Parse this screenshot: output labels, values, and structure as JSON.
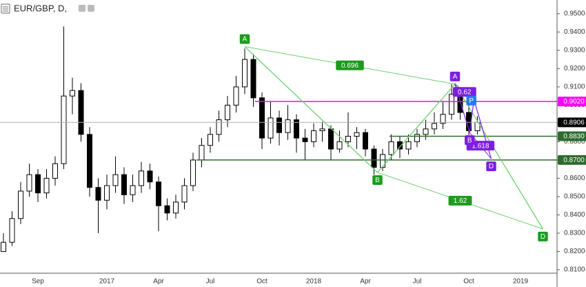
{
  "chart_data": {
    "type": "candlestick",
    "title": "EUR/GBP, D,",
    "categories": [
      null,
      null,
      null,
      null,
      "Sep",
      null,
      null,
      null,
      null,
      null,
      null,
      null,
      "2017",
      null,
      null,
      null,
      null,
      null,
      "Apr",
      null,
      null,
      null,
      null,
      null,
      "Jul",
      null,
      null,
      null,
      null,
      null,
      "Oct",
      null,
      null,
      null,
      null,
      null,
      "2018",
      null,
      null,
      null,
      null,
      null,
      "Apr",
      null,
      null,
      null,
      null,
      null,
      "Jul",
      null,
      null,
      null,
      null,
      null,
      "Oct",
      null,
      null,
      null,
      null,
      null,
      "2019",
      null,
      null,
      null
    ],
    "open": [
      0.82,
      0.825,
      0.838,
      0.853,
      0.862,
      0.852,
      0.86,
      0.868,
      0.905,
      0.908,
      0.884,
      0.855,
      0.848,
      0.856,
      0.862,
      0.851,
      0.856,
      0.864,
      0.858,
      0.845,
      0.841,
      0.847,
      0.856,
      0.87,
      0.878,
      0.884,
      0.892,
      0.9,
      0.91,
      0.925,
      0.904,
      0.882,
      0.893,
      0.885,
      0.892,
      0.882,
      0.88,
      0.886,
      0.887,
      0.876,
      0.88,
      0.883,
      0.885,
      0.876,
      0.866,
      0.873,
      0.88,
      0.876,
      0.88,
      0.884,
      0.887,
      0.89,
      0.895,
      0.906,
      0.896,
      0.886,
      null,
      null,
      null,
      null,
      null,
      null,
      null,
      null
    ],
    "high": [
      0.83,
      0.842,
      0.858,
      0.868,
      0.865,
      0.865,
      0.872,
      0.943,
      0.915,
      0.912,
      0.888,
      0.86,
      0.862,
      0.872,
      0.866,
      0.862,
      0.869,
      0.868,
      0.861,
      0.849,
      0.851,
      0.86,
      0.874,
      0.882,
      0.888,
      0.897,
      0.905,
      0.916,
      0.931,
      0.928,
      0.907,
      0.902,
      0.897,
      0.9,
      0.895,
      0.887,
      0.89,
      0.891,
      0.889,
      0.886,
      0.896,
      0.888,
      0.887,
      0.878,
      0.876,
      0.884,
      0.883,
      0.884,
      0.887,
      0.892,
      0.896,
      0.902,
      0.9115,
      0.909,
      0.902,
      0.894,
      null,
      null,
      null,
      null,
      null,
      null,
      null,
      null
    ],
    "low": [
      0.821,
      0.823,
      0.835,
      0.85,
      0.847,
      0.849,
      0.856,
      0.865,
      0.895,
      0.88,
      0.85,
      0.83,
      0.843,
      0.852,
      0.846,
      0.847,
      0.852,
      0.854,
      0.831,
      0.837,
      0.838,
      0.843,
      0.853,
      0.866,
      0.874,
      0.88,
      0.888,
      0.896,
      0.906,
      0.899,
      0.876,
      0.879,
      0.878,
      0.881,
      0.874,
      0.87,
      0.877,
      0.88,
      0.87,
      0.874,
      0.877,
      0.876,
      0.872,
      0.862,
      0.864,
      0.87,
      0.871,
      0.873,
      0.877,
      0.881,
      0.884,
      0.887,
      0.892,
      0.892,
      0.882,
      0.884,
      null,
      null,
      null,
      null,
      null,
      null,
      null,
      null
    ],
    "close": [
      0.825,
      0.838,
      0.853,
      0.862,
      0.852,
      0.86,
      0.868,
      0.905,
      0.908,
      0.884,
      0.855,
      0.848,
      0.856,
      0.862,
      0.851,
      0.856,
      0.864,
      0.858,
      0.845,
      0.841,
      0.847,
      0.856,
      0.87,
      0.878,
      0.884,
      0.892,
      0.9,
      0.91,
      0.925,
      0.904,
      0.882,
      0.893,
      0.885,
      0.892,
      0.882,
      0.88,
      0.886,
      0.887,
      0.876,
      0.88,
      0.883,
      0.885,
      0.876,
      0.866,
      0.873,
      0.88,
      0.876,
      0.88,
      0.884,
      0.887,
      0.89,
      0.895,
      0.906,
      0.896,
      0.886,
      0.8906,
      null,
      null,
      null,
      null,
      null,
      null,
      null,
      null
    ],
    "up_color": "#ffffff",
    "down_color": "#000000",
    "line_color": "#000000",
    "xlim": [
      -0.4,
      64.24
    ],
    "ylim": [
      0.8081,
      0.9575
    ],
    "grid": false,
    "yticks": [
      {
        "value": 0.95,
        "label": "0.9500"
      },
      {
        "value": 0.94,
        "label": "0.9400"
      },
      {
        "value": 0.93,
        "label": "0.9300"
      },
      {
        "value": 0.92,
        "label": "0.9200"
      },
      {
        "value": 0.91,
        "label": "0.9100"
      },
      {
        "value": 0.9,
        "label": "0.9000"
      },
      {
        "value": 0.89,
        "label": "0.8900"
      },
      {
        "value": 0.88,
        "label": "0.8800"
      },
      {
        "value": 0.87,
        "label": "0.8700"
      },
      {
        "value": 0.86,
        "label": "0.8600"
      },
      {
        "value": 0.85,
        "label": "0.8500"
      },
      {
        "value": 0.84,
        "label": "0.8400"
      },
      {
        "value": 0.83,
        "label": "0.8300"
      },
      {
        "value": 0.82,
        "label": "0.8200"
      },
      {
        "value": 0.81,
        "label": "0.8100"
      }
    ],
    "levels": [
      {
        "value": 0.8906,
        "label": "0.8906",
        "color": "#b0b0b0",
        "box_color": "#000000"
      },
      {
        "value": 0.902,
        "label": "0.9020",
        "color": "#ff00ff",
        "box_color": "#ff00ff",
        "from": 29.2
      },
      {
        "value": 0.883,
        "label": "0.8830",
        "color": "#2e6b2e",
        "box_color": "#2e6b2e",
        "from": 44.8
      },
      {
        "value": 0.87,
        "label": "0.8700",
        "color": "#2e6b2e",
        "box_color": "#2e6b2e",
        "from": 22.4
      }
    ],
    "patterns": [
      {
        "color": "#6dcf6d",
        "label_color": "#1f9a1f",
        "points": [
          {
            "label": "A",
            "x": 28,
            "y": 0.932
          },
          {
            "label": "B",
            "x": 43.4,
            "y": 0.8632
          },
          {
            "label": null,
            "x": 52.4,
            "y": 0.9115
          },
          {
            "label": "D",
            "x": 62.6,
            "y": 0.8323
          }
        ],
        "ratios": [
          "0.696",
          "1.62"
        ]
      },
      {
        "color": "#7b2fe0",
        "label_color": "#7b1fe0",
        "points": [
          {
            "label": "A",
            "x": 52.4,
            "y": 0.9115
          },
          {
            "label": "B",
            "x": 54.1,
            "y": 0.885
          },
          {
            "label": null,
            "x": 54.6,
            "y": 0.903
          },
          {
            "label": "D",
            "x": 56.6,
            "y": 0.8707
          }
        ],
        "ratios": [
          "0.62",
          "1.618"
        ]
      }
    ],
    "annotations": [
      {
        "text": "P",
        "x": 54.3,
        "y": 0.9025,
        "color": "#2979ff"
      }
    ]
  }
}
